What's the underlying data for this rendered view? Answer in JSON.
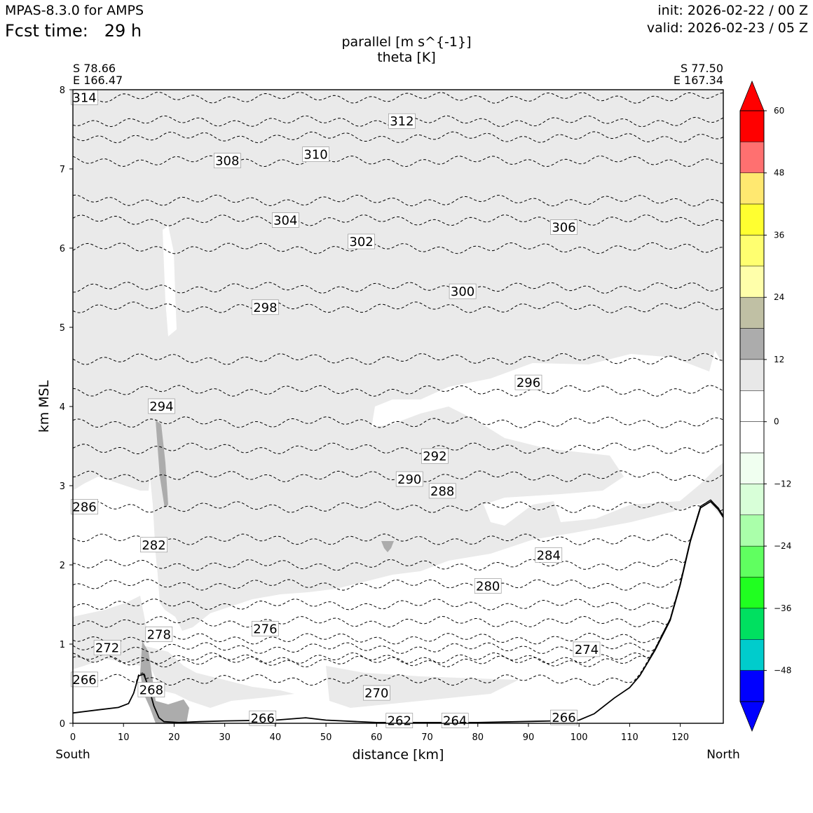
{
  "header": {
    "model": "MPAS-8.3.0 for AMPS",
    "fcst_label": "Fcst time:",
    "fcst_value": "29 h",
    "init": "init: 2026-02-22 / 00 Z",
    "valid": "valid: 2026-02-23 / 05 Z"
  },
  "chart_data": {
    "type": "cross-section",
    "title_line1": "parallel [m s^{-1}]",
    "title_line2": "theta [K]",
    "xlabel": "distance [km]",
    "ylabel": "km MSL",
    "xlim": [
      0,
      128.5
    ],
    "ylim": [
      0,
      8
    ],
    "x_ticks": [
      0,
      10,
      20,
      30,
      40,
      50,
      60,
      70,
      80,
      90,
      100,
      110,
      120
    ],
    "y_ticks": [
      0,
      1,
      2,
      3,
      4,
      5,
      6,
      7,
      8
    ],
    "start_point": {
      "lat": "S 78.66",
      "lon": "E 166.47",
      "end_label": "South"
    },
    "end_point": {
      "lat": "S 77.50",
      "lon": "E 167.34",
      "end_label": "North"
    },
    "terrain": [
      [
        0,
        0.13
      ],
      [
        5,
        0.17
      ],
      [
        9,
        0.2
      ],
      [
        11,
        0.25
      ],
      [
        12,
        0.38
      ],
      [
        13,
        0.6
      ],
      [
        14,
        0.62
      ],
      [
        15,
        0.45
      ],
      [
        16,
        0.22
      ],
      [
        17,
        0.07
      ],
      [
        18,
        0.02
      ],
      [
        21,
        0.01
      ],
      [
        25,
        0.02
      ],
      [
        30,
        0.03
      ],
      [
        40,
        0.04
      ],
      [
        46,
        0.07
      ],
      [
        50,
        0.04
      ],
      [
        60,
        0.01
      ],
      [
        80,
        0.01
      ],
      [
        95,
        0.03
      ],
      [
        100,
        0.04
      ],
      [
        103,
        0.12
      ],
      [
        107,
        0.32
      ],
      [
        110,
        0.45
      ],
      [
        112,
        0.6
      ],
      [
        115,
        0.92
      ],
      [
        118,
        1.3
      ],
      [
        120,
        1.75
      ],
      [
        122,
        2.3
      ],
      [
        124,
        2.72
      ],
      [
        126,
        2.8
      ],
      [
        127.5,
        2.7
      ],
      [
        128.5,
        2.6
      ]
    ],
    "theta_contours": [
      {
        "value": 266,
        "y": 0.55,
        "label_x": 2.3
      },
      {
        "value": 268,
        "y": 0.78,
        "label_x": null
      },
      {
        "value": 270,
        "y": 0.82,
        "label_x": null
      },
      {
        "value": 272,
        "y": 0.95,
        "label_x": 6.8
      },
      {
        "value": 274,
        "y": 1.07,
        "label_x": null
      },
      {
        "value": 276,
        "y": 1.28,
        "label_x": null
      },
      {
        "value": 278,
        "y": 1.5,
        "label_x": null
      },
      {
        "value": 280,
        "y": 1.75,
        "label_x": null
      },
      {
        "value": 282,
        "y": 2.0,
        "label_x": null
      },
      {
        "value": 284,
        "y": 2.32,
        "label_x": null
      },
      {
        "value": 286,
        "y": 2.73,
        "label_x": 2.3
      },
      {
        "value": 288,
        "y": 3.12,
        "label_x": null
      },
      {
        "value": 290,
        "y": 3.47,
        "label_x": null
      },
      {
        "value": 292,
        "y": 3.8,
        "label_x": null
      },
      {
        "value": 294,
        "y": 4.2,
        "label_x": null
      },
      {
        "value": 296,
        "y": 4.6,
        "label_x": null
      },
      {
        "value": 298,
        "y": 5.25,
        "label_x": 38
      },
      {
        "value": 300,
        "y": 5.5,
        "label_x": null
      },
      {
        "value": 302,
        "y": 6.0,
        "label_x": null
      },
      {
        "value": 304,
        "y": 6.35,
        "label_x": 42
      },
      {
        "value": 306,
        "y": 6.6,
        "label_x": null
      },
      {
        "value": 308,
        "y": 7.1,
        "label_x": 30.5
      },
      {
        "value": 310,
        "y": 7.4,
        "label_x": null
      },
      {
        "value": 312,
        "y": 7.6,
        "label_x": 65
      },
      {
        "value": 314,
        "y": 7.9,
        "label_x": 2.3
      }
    ],
    "extra_labels": [
      {
        "value": 266,
        "x": 37.5,
        "y": 0.06
      },
      {
        "value": 262,
        "x": 64.5,
        "y": 0.03
      },
      {
        "value": 264,
        "x": 75.5,
        "y": 0.03
      },
      {
        "value": 266,
        "x": 97,
        "y": 0.07
      },
      {
        "value": 268,
        "x": 15.5,
        "y": 0.42
      },
      {
        "value": 270,
        "x": 60,
        "y": 0.38
      },
      {
        "value": 274,
        "x": 101.5,
        "y": 0.93
      },
      {
        "value": 276,
        "x": 38,
        "y": 1.19
      },
      {
        "value": 278,
        "x": 17,
        "y": 1.12
      },
      {
        "value": 280,
        "x": 82,
        "y": 1.73
      },
      {
        "value": 282,
        "x": 16,
        "y": 2.25
      },
      {
        "value": 284,
        "x": 94,
        "y": 2.12
      },
      {
        "value": 288,
        "x": 73,
        "y": 2.93
      },
      {
        "value": 290,
        "x": 66.5,
        "y": 3.08
      },
      {
        "value": 292,
        "x": 71.5,
        "y": 3.37
      },
      {
        "value": 294,
        "x": 17.5,
        "y": 4.0
      },
      {
        "value": 296,
        "x": 90,
        "y": 4.3
      },
      {
        "value": 300,
        "x": 77,
        "y": 5.45
      },
      {
        "value": 302,
        "x": 57,
        "y": 6.08
      },
      {
        "value": 306,
        "x": 97,
        "y": 6.26
      },
      {
        "value": 310,
        "x": 48,
        "y": 7.18
      }
    ],
    "colorbar": {
      "ticks": [
        "60",
        "48",
        "36",
        "24",
        "12",
        "0",
        "−12",
        "−24",
        "−36",
        "−48"
      ],
      "tick_values": [
        60,
        48,
        36,
        24,
        12,
        0,
        -12,
        -24,
        -36,
        -48
      ],
      "range": [
        -54,
        60
      ],
      "levels": [
        {
          "from": 54,
          "to": 60,
          "color": "#ff0000"
        },
        {
          "from": 48,
          "to": 54,
          "color": "#ff7070"
        },
        {
          "from": 42,
          "to": 48,
          "color": "#ffe870"
        },
        {
          "from": 36,
          "to": 42,
          "color": "#ffff30"
        },
        {
          "from": 30,
          "to": 36,
          "color": "#ffff70"
        },
        {
          "from": 24,
          "to": 30,
          "color": "#ffffaa"
        },
        {
          "from": 18,
          "to": 24,
          "color": "#c0c0a4"
        },
        {
          "from": 12,
          "to": 18,
          "color": "#acacac"
        },
        {
          "from": 6,
          "to": 12,
          "color": "#e8e8e8"
        },
        {
          "from": 0,
          "to": 6,
          "color": "#ffffff"
        },
        {
          "from": -6,
          "to": 0,
          "color": "#ffffff"
        },
        {
          "from": -12,
          "to": -6,
          "color": "#f0fff0"
        },
        {
          "from": -18,
          "to": -12,
          "color": "#d8ffd8"
        },
        {
          "from": -24,
          "to": -18,
          "color": "#aaffaa"
        },
        {
          "from": -30,
          "to": -24,
          "color": "#60ff60"
        },
        {
          "from": -36,
          "to": -30,
          "color": "#20ff20"
        },
        {
          "from": -42,
          "to": -36,
          "color": "#00e060"
        },
        {
          "from": -48,
          "to": -42,
          "color": "#00cccc"
        },
        {
          "from": -54,
          "to": -48,
          "color": "#0000ff"
        }
      ],
      "over_color": "#ff0000",
      "under_color": "#0000ff"
    },
    "shading_colors": {
      "light": "#eaeaea",
      "medium": "#acacac",
      "axis": "#000000"
    }
  }
}
